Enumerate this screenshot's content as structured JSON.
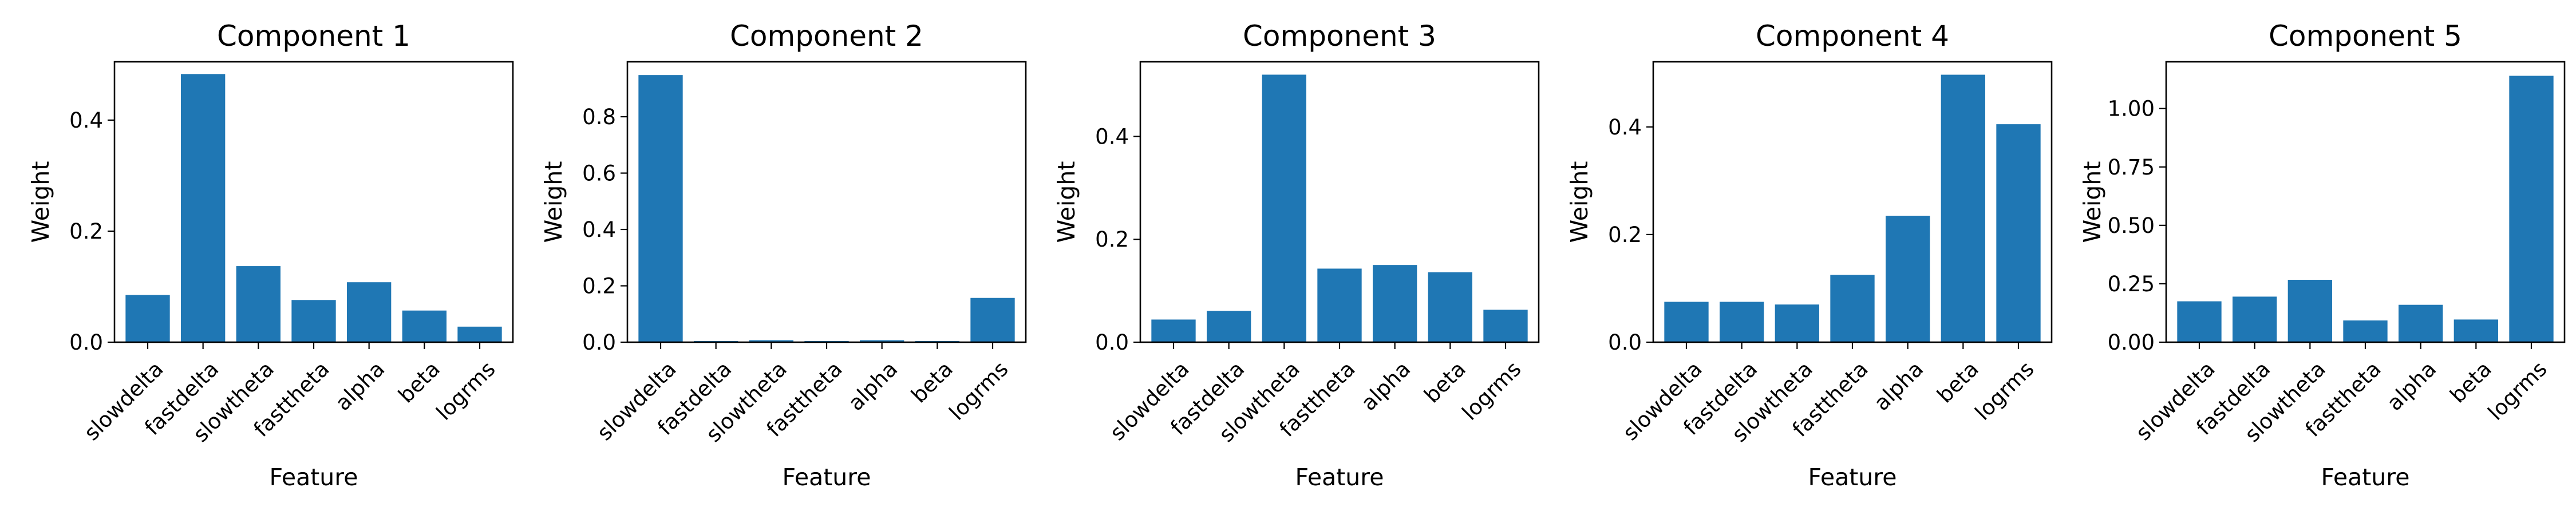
{
  "bar_color": "#1f77b4",
  "chart_data": [
    {
      "type": "bar",
      "title": "Component 1",
      "xlabel": "Feature",
      "ylabel": "Weight",
      "categories": [
        "slowdelta",
        "fastdelta",
        "slowtheta",
        "fasttheta",
        "alpha",
        "beta",
        "logrms"
      ],
      "values": [
        0.085,
        0.483,
        0.137,
        0.076,
        0.108,
        0.057,
        0.028
      ],
      "ylim": [
        0,
        0.505
      ],
      "yticks": [
        0.0,
        0.2,
        0.4
      ],
      "ytick_labels": [
        "0.0",
        "0.2",
        "0.4"
      ],
      "grid": false,
      "legend": "none"
    },
    {
      "type": "bar",
      "title": "Component 2",
      "xlabel": "Feature",
      "ylabel": "Weight",
      "categories": [
        "slowdelta",
        "fastdelta",
        "slowtheta",
        "fasttheta",
        "alpha",
        "beta",
        "logrms"
      ],
      "values": [
        0.948,
        0.004,
        0.007,
        0.004,
        0.007,
        0.004,
        0.157
      ],
      "ylim": [
        0,
        0.995
      ],
      "yticks": [
        0.0,
        0.2,
        0.4,
        0.6,
        0.8
      ],
      "ytick_labels": [
        "0.0",
        "0.2",
        "0.4",
        "0.6",
        "0.8"
      ],
      "grid": false,
      "legend": "none"
    },
    {
      "type": "bar",
      "title": "Component 3",
      "xlabel": "Feature",
      "ylabel": "Weight",
      "categories": [
        "slowdelta",
        "fastdelta",
        "slowtheta",
        "fasttheta",
        "alpha",
        "beta",
        "logrms"
      ],
      "values": [
        0.044,
        0.061,
        0.52,
        0.143,
        0.15,
        0.136,
        0.063
      ],
      "ylim": [
        0,
        0.545
      ],
      "yticks": [
        0.0,
        0.2,
        0.4
      ],
      "ytick_labels": [
        "0.0",
        "0.2",
        "0.4"
      ],
      "grid": false,
      "legend": "none"
    },
    {
      "type": "bar",
      "title": "Component 4",
      "xlabel": "Feature",
      "ylabel": "Weight",
      "categories": [
        "slowdelta",
        "fastdelta",
        "slowtheta",
        "fasttheta",
        "alpha",
        "beta",
        "logrms"
      ],
      "values": [
        0.075,
        0.075,
        0.07,
        0.125,
        0.235,
        0.497,
        0.405
      ],
      "ylim": [
        0,
        0.521
      ],
      "yticks": [
        0.0,
        0.2,
        0.4
      ],
      "ytick_labels": [
        "0.0",
        "0.2",
        "0.4"
      ],
      "grid": false,
      "legend": "none"
    },
    {
      "type": "bar",
      "title": "Component 5",
      "xlabel": "Feature",
      "ylabel": "Weight",
      "categories": [
        "slowdelta",
        "fastdelta",
        "slowtheta",
        "fasttheta",
        "alpha",
        "beta",
        "logrms"
      ],
      "values": [
        0.175,
        0.195,
        0.267,
        0.093,
        0.16,
        0.097,
        1.14
      ],
      "ylim": [
        0,
        1.2
      ],
      "yticks": [
        0.0,
        0.25,
        0.5,
        0.75,
        1.0
      ],
      "ytick_labels": [
        "0.00",
        "0.25",
        "0.50",
        "0.75",
        "1.00"
      ],
      "grid": false,
      "legend": "none"
    }
  ]
}
